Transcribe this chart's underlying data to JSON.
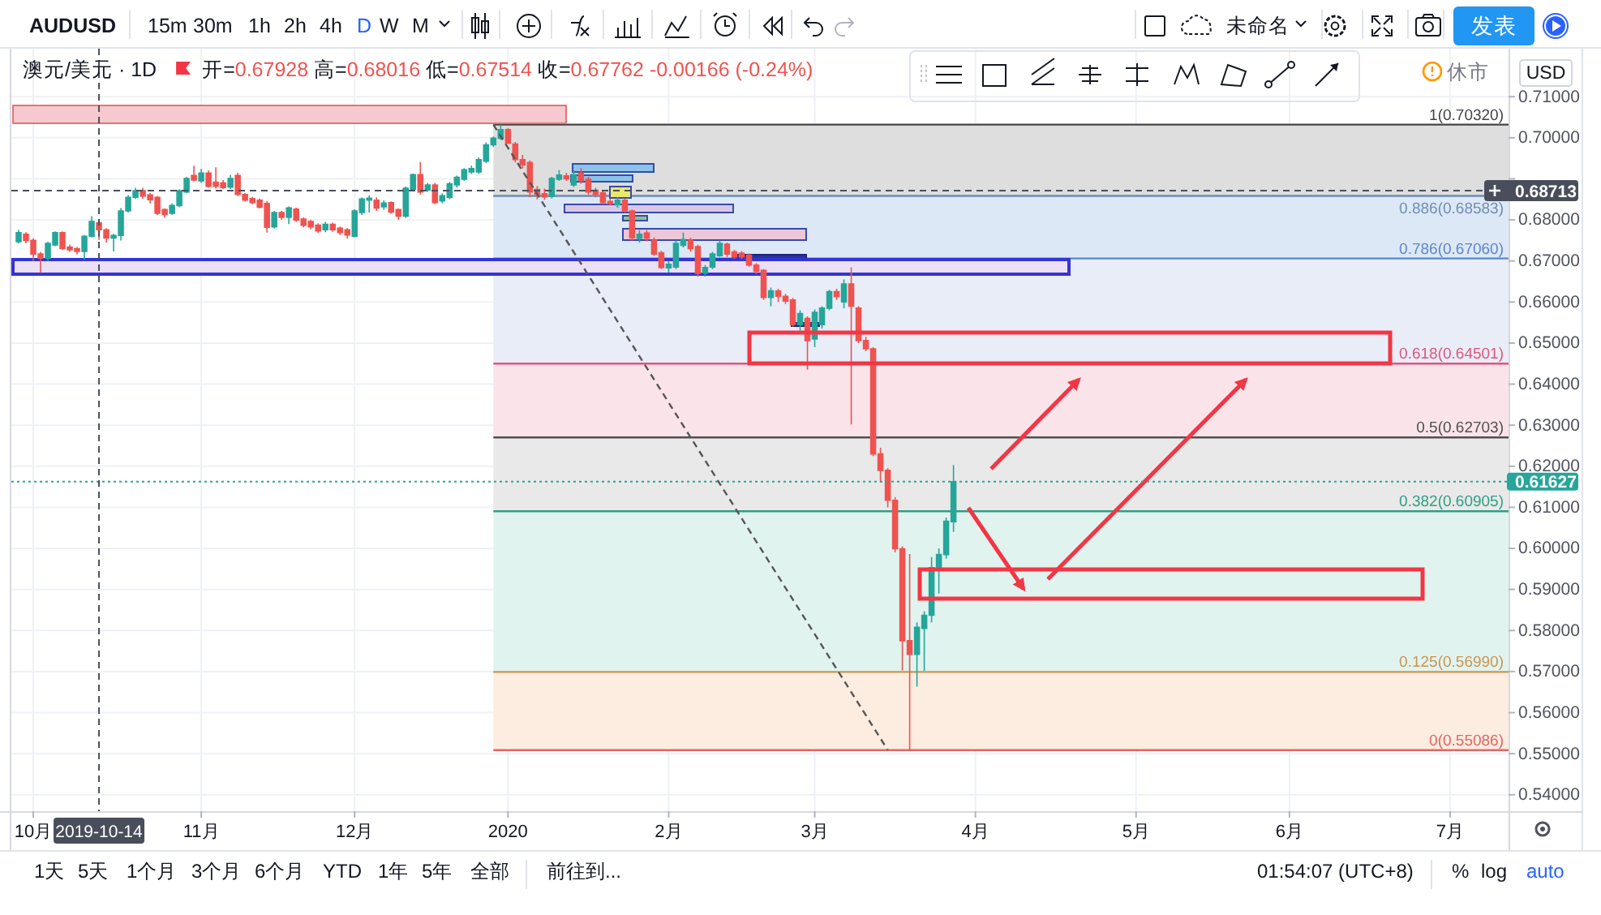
{
  "chart_data": {
    "type": "candlestick",
    "title": "澳元/美元 · 1D",
    "subtitle": "开=0.67928 高=0.68016 低=0.67514 收=0.67762 -0.00166 (-0.24%)",
    "annotations": [
      "AUDUSD",
      "15m",
      "30m",
      "1h",
      "2h",
      "4h",
      "D",
      "W",
      "M",
      "未命名",
      "发表",
      "休市",
      "USD",
      "1天",
      "5天",
      "1个月",
      "3个月",
      "6个月",
      "YTD",
      "1年",
      "5年",
      "全部",
      "前往到...",
      "01:54:07 (UTC+8)",
      "%",
      "log",
      "auto"
    ],
    "categories": [
      null,
      null,
      "10月",
      null,
      null,
      null,
      null,
      null,
      null,
      null,
      null,
      "2019-10-14",
      null,
      null,
      null,
      null,
      null,
      null,
      null,
      null,
      null,
      null,
      null,
      null,
      null,
      "11月",
      null,
      null,
      null,
      null,
      null,
      null,
      null,
      null,
      null,
      null,
      null,
      null,
      null,
      null,
      null,
      null,
      null,
      null,
      null,
      null,
      "12月",
      null,
      null,
      null,
      null,
      null,
      null,
      null,
      null,
      null,
      null,
      null,
      null,
      null,
      null,
      null,
      null,
      null,
      null,
      null,
      null,
      "2020",
      null,
      null,
      null,
      null,
      null,
      null,
      null,
      null,
      null,
      null,
      null,
      null,
      null,
      null,
      null,
      null,
      null,
      null,
      null,
      null,
      null,
      "2月",
      null,
      null,
      null,
      null,
      null,
      null,
      null,
      null,
      null,
      null,
      null,
      null,
      null,
      null,
      null,
      null,
      null,
      null,
      null,
      "3月",
      null,
      null,
      null,
      null,
      null,
      null,
      null,
      null,
      null,
      null,
      null,
      null,
      null,
      null,
      null,
      null,
      null,
      null,
      null,
      null,
      null,
      "4月",
      null,
      null,
      null,
      null,
      null,
      null,
      null,
      null,
      null,
      null,
      null,
      null,
      null,
      null,
      null,
      null,
      null,
      null,
      null,
      null,
      null,
      "5月",
      null,
      null,
      null,
      null,
      null,
      null,
      null,
      null,
      null,
      null,
      null,
      null,
      null,
      null,
      null,
      null,
      null,
      null,
      null,
      null,
      "6月",
      null,
      null,
      null,
      null,
      null,
      null,
      null,
      null,
      null,
      null,
      null,
      null,
      null,
      null,
      null,
      null,
      null,
      null,
      null,
      null,
      null,
      "7月",
      null,
      null,
      null,
      null,
      null,
      null,
      null
    ],
    "ohlc": [
      [
        0.6747,
        0.6776,
        0.6743,
        0.6769
      ],
      [
        0.6765,
        0.677,
        0.6743,
        0.675
      ],
      [
        0.675,
        0.6755,
        0.67,
        0.6717
      ],
      [
        0.6717,
        0.6722,
        0.6671,
        0.6707
      ],
      [
        0.6707,
        0.6747,
        0.67,
        0.6743
      ],
      [
        0.6739,
        0.6772,
        0.6736,
        0.6769
      ],
      [
        0.6769,
        0.6772,
        0.6727,
        0.673
      ],
      [
        0.6734,
        0.674,
        0.6722,
        0.6727
      ],
      [
        0.673,
        0.6734,
        0.6716,
        0.6723
      ],
      [
        0.6723,
        0.6763,
        0.6703,
        0.676
      ],
      [
        0.676,
        0.6809,
        0.6757,
        0.6796
      ],
      [
        0.67928,
        0.68016,
        0.67514,
        0.67762
      ],
      [
        0.6776,
        0.678,
        0.6745,
        0.6756
      ],
      [
        0.6756,
        0.6766,
        0.6723,
        0.6762
      ],
      [
        0.6762,
        0.6829,
        0.675,
        0.6822
      ],
      [
        0.6822,
        0.686,
        0.6818,
        0.6855
      ],
      [
        0.6855,
        0.6878,
        0.6851,
        0.6871
      ],
      [
        0.6871,
        0.6878,
        0.6851,
        0.6858
      ],
      [
        0.6861,
        0.6866,
        0.684,
        0.6849
      ],
      [
        0.6855,
        0.6858,
        0.6812,
        0.6816
      ],
      [
        0.6825,
        0.6828,
        0.6805,
        0.6813
      ],
      [
        0.6816,
        0.684,
        0.6812,
        0.6835
      ],
      [
        0.6835,
        0.6874,
        0.6831,
        0.6871
      ],
      [
        0.6868,
        0.6905,
        0.6865,
        0.6901
      ],
      [
        0.6908,
        0.6932,
        0.6894,
        0.6897
      ],
      [
        0.6895,
        0.6924,
        0.689,
        0.6914
      ],
      [
        0.6914,
        0.692,
        0.6878,
        0.6882
      ],
      [
        0.6892,
        0.6928,
        0.6876,
        0.6882
      ],
      [
        0.689,
        0.6897,
        0.6875,
        0.6879
      ],
      [
        0.688,
        0.691,
        0.6875,
        0.6901
      ],
      [
        0.6908,
        0.6915,
        0.6858,
        0.6862
      ],
      [
        0.6862,
        0.6866,
        0.6845,
        0.6848
      ],
      [
        0.6852,
        0.6856,
        0.6838,
        0.6842
      ],
      [
        0.6848,
        0.6852,
        0.6828,
        0.6831
      ],
      [
        0.684,
        0.6846,
        0.6769,
        0.6782
      ],
      [
        0.6783,
        0.6822,
        0.6779,
        0.6818
      ],
      [
        0.6818,
        0.6822,
        0.68,
        0.6806
      ],
      [
        0.6806,
        0.6833,
        0.679,
        0.6829
      ],
      [
        0.6826,
        0.683,
        0.6795,
        0.68
      ],
      [
        0.6802,
        0.6806,
        0.6782,
        0.6787
      ],
      [
        0.6796,
        0.68,
        0.6777,
        0.6783
      ],
      [
        0.6787,
        0.6792,
        0.6768,
        0.6773
      ],
      [
        0.6776,
        0.6795,
        0.677,
        0.6789
      ],
      [
        0.6789,
        0.6793,
        0.6771,
        0.6776
      ],
      [
        0.678,
        0.6784,
        0.6763,
        0.6769
      ],
      [
        0.6776,
        0.678,
        0.6754,
        0.6763
      ],
      [
        0.676,
        0.6826,
        0.6757,
        0.6822
      ],
      [
        0.6818,
        0.6855,
        0.6812,
        0.6851
      ],
      [
        0.6848,
        0.686,
        0.6818,
        0.6853
      ],
      [
        0.6848,
        0.6855,
        0.6822,
        0.6829
      ],
      [
        0.6832,
        0.6848,
        0.6825,
        0.6841
      ],
      [
        0.6842,
        0.6845,
        0.6815,
        0.6819
      ],
      [
        0.6825,
        0.6828,
        0.68,
        0.6809
      ],
      [
        0.6809,
        0.6881,
        0.6805,
        0.6877
      ],
      [
        0.6875,
        0.6913,
        0.687,
        0.691
      ],
      [
        0.691,
        0.6941,
        0.6862,
        0.6868
      ],
      [
        0.6873,
        0.689,
        0.6868,
        0.6885
      ],
      [
        0.6885,
        0.689,
        0.6838,
        0.6842
      ],
      [
        0.6846,
        0.6865,
        0.684,
        0.6859
      ],
      [
        0.6855,
        0.6892,
        0.685,
        0.6888
      ],
      [
        0.6885,
        0.6908,
        0.6878,
        0.6904
      ],
      [
        0.6899,
        0.6926,
        0.6895,
        0.6922
      ],
      [
        0.6917,
        0.6932,
        0.6912,
        0.6925
      ],
      [
        0.6917,
        0.6952,
        0.6912,
        0.6947
      ],
      [
        0.6943,
        0.6989,
        0.6938,
        0.6983
      ],
      [
        0.6983,
        0.7003,
        0.6978,
        0.6999
      ],
      [
        0.6999,
        0.7032,
        0.6995,
        0.702
      ],
      [
        0.702,
        0.7024,
        0.6985,
        0.6987
      ],
      [
        0.6985,
        0.699,
        0.694,
        0.6947
      ],
      [
        0.6947,
        0.6958,
        0.6925,
        0.6934
      ],
      [
        0.694,
        0.6945,
        0.6855,
        0.6868
      ],
      [
        0.6874,
        0.6882,
        0.685,
        0.6862
      ],
      [
        0.6864,
        0.6876,
        0.6849,
        0.6856
      ],
      [
        0.6857,
        0.6905,
        0.6852,
        0.6901
      ],
      [
        0.6899,
        0.6921,
        0.6895,
        0.6909
      ],
      [
        0.6907,
        0.6915,
        0.6895,
        0.69
      ],
      [
        0.6885,
        0.692,
        0.688,
        0.691
      ],
      [
        0.6914,
        0.6926,
        0.6888,
        0.6895
      ],
      [
        0.6899,
        0.6905,
        0.6862,
        0.6868
      ],
      [
        0.6872,
        0.6878,
        0.6855,
        0.6862
      ],
      [
        0.6866,
        0.687,
        0.6838,
        0.6842
      ],
      [
        0.6845,
        0.6852,
        0.6835,
        0.684
      ],
      [
        0.6837,
        0.6855,
        0.683,
        0.6848
      ],
      [
        0.6848,
        0.6852,
        0.6818,
        0.6822
      ],
      [
        0.6822,
        0.6825,
        0.675,
        0.6757
      ],
      [
        0.6755,
        0.6775,
        0.6745,
        0.6765
      ],
      [
        0.6768,
        0.6775,
        0.6748,
        0.6756
      ],
      [
        0.675,
        0.6757,
        0.6712,
        0.6717
      ],
      [
        0.672,
        0.6725,
        0.668,
        0.6684
      ],
      [
        0.6683,
        0.67,
        0.6672,
        0.6692
      ],
      [
        0.6685,
        0.675,
        0.668,
        0.6743
      ],
      [
        0.6738,
        0.6769,
        0.6733,
        0.6752
      ],
      [
        0.675,
        0.6756,
        0.6722,
        0.673
      ],
      [
        0.6735,
        0.674,
        0.6662,
        0.667
      ],
      [
        0.6671,
        0.669,
        0.6662,
        0.6684
      ],
      [
        0.6685,
        0.6722,
        0.668,
        0.6717
      ],
      [
        0.6713,
        0.675,
        0.671,
        0.6743
      ],
      [
        0.6741,
        0.6745,
        0.671,
        0.6717
      ],
      [
        0.6722,
        0.6727,
        0.6705,
        0.671
      ],
      [
        0.6719,
        0.6724,
        0.6705,
        0.671
      ],
      [
        0.6714,
        0.6718,
        0.6686,
        0.669
      ],
      [
        0.669,
        0.6695,
        0.6668,
        0.6675
      ],
      [
        0.6677,
        0.668,
        0.6605,
        0.6611
      ],
      [
        0.6611,
        0.6635,
        0.659,
        0.6627
      ],
      [
        0.6627,
        0.6632,
        0.66,
        0.6614
      ],
      [
        0.6614,
        0.662,
        0.6595,
        0.6602
      ],
      [
        0.6605,
        0.661,
        0.654,
        0.6545
      ],
      [
        0.6545,
        0.658,
        0.653,
        0.6572
      ],
      [
        0.656,
        0.6565,
        0.6435,
        0.6506
      ],
      [
        0.651,
        0.6582,
        0.649,
        0.6575
      ],
      [
        0.6545,
        0.659,
        0.6535,
        0.6585
      ],
      [
        0.6585,
        0.663,
        0.658,
        0.6625
      ],
      [
        0.6625,
        0.6632,
        0.6605,
        0.6613
      ],
      [
        0.66,
        0.6655,
        0.6585,
        0.6644
      ],
      [
        0.6644,
        0.6684,
        0.6302,
        0.659
      ],
      [
        0.6585,
        0.659,
        0.65,
        0.6506
      ],
      [
        0.6506,
        0.6515,
        0.648,
        0.6486
      ],
      [
        0.6486,
        0.649,
        0.6225,
        0.623
      ],
      [
        0.623,
        0.6245,
        0.616,
        0.619
      ],
      [
        0.619,
        0.6195,
        0.61,
        0.6117
      ],
      [
        0.6117,
        0.6125,
        0.599,
        0.5999
      ],
      [
        0.5999,
        0.6005,
        0.5703,
        0.5775
      ],
      [
        0.5775,
        0.5986,
        0.55086,
        0.5742
      ],
      [
        0.5742,
        0.582,
        0.5663,
        0.5808
      ],
      [
        0.5805,
        0.5847,
        0.5702,
        0.5837
      ],
      [
        0.5837,
        0.5979,
        0.582,
        0.5953
      ],
      [
        0.5953,
        0.6,
        0.589,
        0.5985
      ],
      [
        0.5985,
        0.6075,
        0.5975,
        0.6066
      ],
      [
        0.6065,
        0.6203,
        0.604,
        0.61627
      ],
      null,
      null,
      null,
      null,
      null,
      null,
      null,
      null,
      null,
      null,
      null,
      null,
      null,
      null,
      null,
      null,
      null,
      null,
      null,
      null,
      null,
      null,
      null,
      null,
      null,
      null,
      null,
      null,
      null,
      null,
      null,
      null,
      null,
      null,
      null,
      null,
      null,
      null,
      null,
      null,
      null,
      null,
      null,
      null,
      null,
      null,
      null,
      null,
      null,
      null,
      null,
      null,
      null,
      null,
      null,
      null,
      null,
      null,
      null,
      null,
      null,
      null,
      null,
      null,
      null,
      null,
      null,
      null,
      null,
      null,
      null,
      null,
      null,
      null,
      null
    ],
    "colors": [
      "#26a69a",
      "#ef5350",
      "#ef5350",
      "#ef5350",
      "#26a69a",
      "#26a69a",
      "#ef5350",
      "#ef5350",
      "#ef5350",
      "#26a69a",
      "#26a69a",
      "#ef5350",
      "#ef5350",
      "#26a69a",
      "#26a69a",
      "#26a69a",
      "#26a69a",
      "#ef5350",
      "#ef5350",
      "#ef5350",
      "#ef5350",
      "#26a69a",
      "#26a69a",
      "#26a69a",
      "#ef5350",
      "#26a69a",
      "#ef5350",
      "#ef5350",
      "#ef5350",
      "#26a69a",
      "#ef5350",
      "#ef5350",
      "#ef5350",
      "#ef5350",
      "#ef5350",
      "#26a69a",
      "#ef5350",
      "#26a69a",
      "#ef5350",
      "#ef5350",
      "#ef5350",
      "#ef5350",
      "#26a69a",
      "#ef5350",
      "#ef5350",
      "#ef5350",
      "#26a69a",
      "#26a69a",
      "#26a69a",
      "#ef5350",
      "#26a69a",
      "#ef5350",
      "#ef5350",
      "#26a69a",
      "#26a69a",
      "#ef5350",
      "#26a69a",
      "#ef5350",
      "#26a69a",
      "#26a69a",
      "#26a69a",
      "#26a69a",
      "#26a69a",
      "#26a69a",
      "#26a69a",
      "#26a69a",
      "#26a69a",
      "#ef5350",
      "#ef5350",
      "#ef5350",
      "#ef5350",
      "#ef5350",
      "#ef5350",
      "#26a69a",
      "#26a69a",
      "#ef5350",
      "#26a69a",
      "#ef5350",
      "#ef5350",
      "#ef5350",
      "#ef5350",
      "#ef5350",
      "#26a69a",
      "#ef5350",
      "#ef5350",
      "#26a69a",
      "#ef5350",
      "#ef5350",
      "#ef5350",
      "#26a69a",
      "#26a69a",
      "#26a69a",
      "#ef5350",
      "#ef5350",
      "#26a69a",
      "#26a69a",
      "#26a69a",
      "#ef5350",
      "#ef5350",
      "#ef5350",
      "#ef5350",
      "#ef5350",
      "#ef5350",
      "#26a69a",
      "#ef5350",
      "#ef5350",
      "#ef5350",
      "#26a69a",
      "#ef5350",
      "#26a69a",
      "#26a69a",
      "#26a69a",
      "#ef5350",
      "#26a69a",
      "#ef5350",
      "#ef5350",
      "#ef5350",
      "#ef5350",
      "#ef5350",
      "#ef5350",
      "#ef5350",
      "#ef5350",
      "#ef5350",
      "#26a69a",
      "#26a69a",
      "#26a69a",
      "#26a69a",
      "#26a69a",
      "#26a69a",
      null,
      null,
      null,
      null,
      null,
      null,
      null,
      null,
      null,
      null,
      null,
      null,
      null,
      null,
      null,
      null,
      null,
      null,
      null,
      null,
      null,
      null,
      null,
      null,
      null,
      null,
      null,
      null,
      null,
      null,
      null,
      null,
      null,
      null,
      null,
      null,
      null,
      null,
      null,
      null,
      null,
      null,
      null,
      null,
      null,
      null,
      null,
      null,
      null,
      null,
      null,
      null,
      null,
      null,
      null,
      null,
      null,
      null,
      null,
      null,
      null,
      null,
      null,
      null,
      null,
      null,
      null,
      null,
      null,
      null,
      null,
      null,
      null,
      null,
      null
    ],
    "series": [
      {
        "type": "line",
        "color": "#555555",
        "line_style": "dashed",
        "values": [
          null,
          null,
          null,
          null,
          null,
          null,
          null,
          null,
          null,
          null,
          null,
          null,
          null,
          null,
          null,
          null,
          null,
          null,
          null,
          null,
          null,
          null,
          null,
          null,
          null,
          null,
          null,
          null,
          null,
          null,
          null,
          null,
          null,
          null,
          null,
          null,
          null,
          null,
          null,
          null,
          null,
          null,
          null,
          null,
          null,
          null,
          null,
          null,
          null,
          null,
          null,
          null,
          null,
          null,
          null,
          null,
          null,
          null,
          null,
          null,
          null,
          null,
          null,
          null,
          null,
          0.7032,
          null,
          null,
          null,
          null,
          null,
          null,
          null,
          null,
          null,
          null,
          null,
          null,
          null,
          null,
          null,
          null,
          null,
          null,
          null,
          null,
          null,
          null,
          null,
          null,
          null,
          null,
          null,
          null,
          null,
          null,
          null,
          null,
          null,
          null,
          null,
          null,
          null,
          null,
          null,
          null,
          null,
          null,
          null,
          null,
          null,
          null,
          null,
          null,
          null,
          null,
          null,
          null,
          null,
          0.5509,
          null,
          null,
          null,
          null,
          null,
          null,
          null,
          null,
          null,
          null,
          null,
          null,
          null,
          null,
          null,
          null,
          null,
          null,
          null,
          null,
          null,
          null,
          null,
          null,
          null,
          null,
          null,
          null,
          null,
          null,
          null,
          null,
          null,
          null,
          null,
          null,
          null,
          null,
          null,
          null,
          null,
          null,
          null,
          null,
          null,
          null,
          null,
          null,
          null,
          null,
          null,
          null,
          null,
          null,
          null,
          null,
          null,
          null,
          null,
          null,
          null,
          null,
          null,
          null,
          null,
          null,
          null,
          null,
          null,
          null,
          null,
          null,
          null,
          null,
          null,
          null,
          null,
          null,
          null,
          null,
          null,
          null,
          null,
          null
        ]
      }
    ],
    "ylim": [
      0.536,
      0.7217
    ],
    "yticks": [
      {
        "value": 0.71,
        "label": "0.71000"
      },
      {
        "value": 0.7,
        "label": "0.70000"
      },
      {
        "value": 0.69,
        "label": null
      },
      {
        "value": 0.68,
        "label": "0.68000"
      },
      {
        "value": 0.67,
        "label": "0.67000"
      },
      {
        "value": 0.66,
        "label": "0.66000"
      },
      {
        "value": 0.65,
        "label": "0.65000"
      },
      {
        "value": 0.64,
        "label": "0.64000"
      },
      {
        "value": 0.63,
        "label": "0.63000"
      },
      {
        "value": 0.62,
        "label": "0.62000"
      },
      {
        "value": 0.61,
        "label": "0.61000"
      },
      {
        "value": 0.6,
        "label": "0.60000"
      },
      {
        "value": 0.59,
        "label": "0.59000"
      },
      {
        "value": 0.58,
        "label": "0.58000"
      },
      {
        "value": 0.57,
        "label": "0.57000"
      },
      {
        "value": 0.56,
        "label": "0.56000"
      },
      {
        "value": 0.55,
        "label": "0.55000"
      },
      {
        "value": 0.54,
        "label": "0.54000"
      }
    ],
    "grid": true,
    "bands": [
      {
        "axis": "y",
        "from": 0.68583,
        "to": 0.7032,
        "color": "#dedede"
      },
      {
        "axis": "y",
        "from": 0.6706,
        "to": 0.68583,
        "color": "#dde8f6"
      },
      {
        "axis": "y",
        "from": 0.64501,
        "to": 0.6706,
        "color": "#e8edf8"
      },
      {
        "axis": "y",
        "from": 0.62703,
        "to": 0.64501,
        "color": "#fbe3ea"
      },
      {
        "axis": "y",
        "from": 0.60905,
        "to": 0.62703,
        "color": "#e9e9e9"
      },
      {
        "axis": "y",
        "from": 0.5699,
        "to": 0.60905,
        "color": "#e1f3ef"
      },
      {
        "axis": "y",
        "from": 0.55086,
        "to": 0.5699,
        "color": "#fdece0"
      }
    ],
    "ref_lines": [
      {
        "axis": "y",
        "value": 0.7032,
        "label": "1(0.70320)",
        "color": "#454545"
      },
      {
        "axis": "y",
        "value": 0.68583,
        "label": "0.886(0.68583)",
        "color": "#6d8db5"
      },
      {
        "axis": "y",
        "value": 0.6706,
        "label": "0.786(0.67060)",
        "color": "#5b87c9"
      },
      {
        "axis": "y",
        "value": 0.64501,
        "label": "0.618(0.64501)",
        "color": "#e0567a"
      },
      {
        "axis": "y",
        "value": 0.62703,
        "label": "0.5(0.62703)",
        "color": "#505050"
      },
      {
        "axis": "y",
        "value": 0.60905,
        "label": "0.382(0.60905)",
        "color": "#2e9e86"
      },
      {
        "axis": "y",
        "value": 0.5699,
        "label": "0.125(0.56990)",
        "color": "#c9954f"
      },
      {
        "axis": "y",
        "value": 0.55086,
        "label": "0(0.55086)",
        "color": "#e06666"
      },
      {
        "axis": "y",
        "value": 0.68713,
        "label": "0.68713",
        "line_style": "dashed",
        "color": "#4a4e5a"
      },
      {
        "axis": "y",
        "value": 0.61627,
        "label": "0.61627",
        "line_style": "dotted",
        "color": "#26a69a"
      },
      {
        "axis": "x",
        "value": "2019-10-14",
        "label": "2019-10-14",
        "line_style": "dashed",
        "color": "#4a4e5a"
      }
    ]
  }
}
